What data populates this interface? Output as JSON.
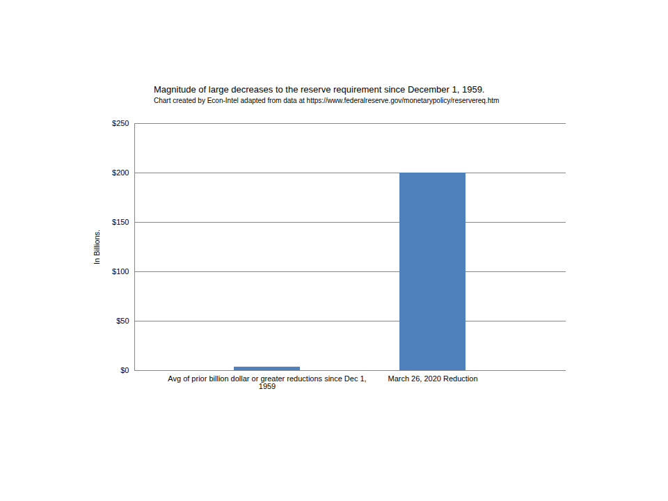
{
  "chart_data": {
    "type": "bar",
    "title": "Magnitude of large decreases to the reserve requirement since December 1, 1959.",
    "subtitle": "Chart created by Econ-Intel adapted from data at https://www.federalreserve.gov/monetarypolicy/reservereq.htm",
    "y_label": "In Billions.",
    "categories": [
      "Avg of prior billion dollar or greater reductions since Dec 1, 1959",
      "March 26, 2020 Reduction"
    ],
    "values": [
      3.5,
      200
    ],
    "color": "#4f81bd",
    "ylim": [
      0,
      250
    ],
    "yticks": [
      {
        "value": 0,
        "label": "$0"
      },
      {
        "value": 50,
        "label": "$50"
      },
      {
        "value": 100,
        "label": "$100"
      },
      {
        "value": 150,
        "label": "$150"
      },
      {
        "value": 200,
        "label": "$200"
      },
      {
        "value": 250,
        "label": "$250"
      }
    ],
    "grid": true
  }
}
